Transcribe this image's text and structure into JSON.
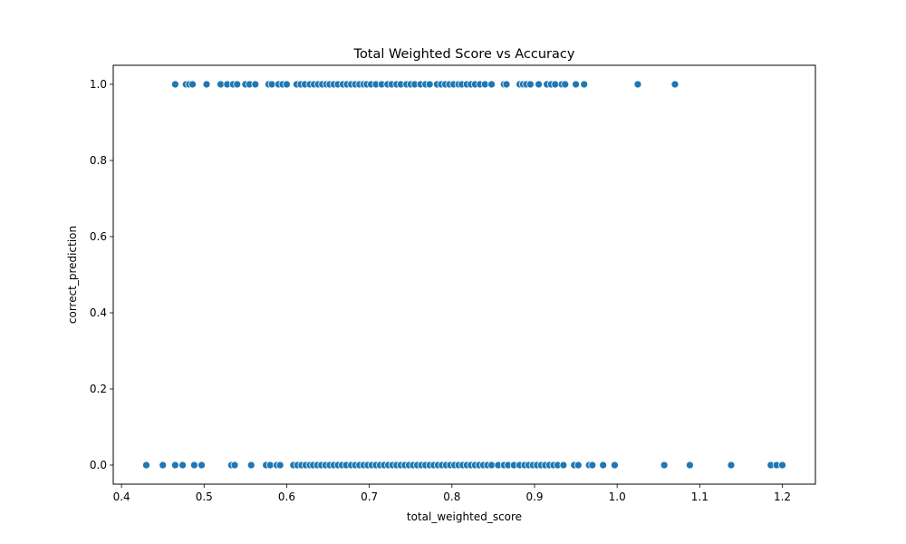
{
  "chart_data": {
    "type": "scatter",
    "title": "Total Weighted Score vs Accuracy",
    "xlabel": "total_weighted_score",
    "ylabel": "correct_prediction",
    "xlim": [
      0.39,
      1.24
    ],
    "ylim": [
      -0.05,
      1.05
    ],
    "xticks": [
      0.4,
      0.5,
      0.6,
      0.7,
      0.8,
      0.9,
      1.0,
      1.1,
      1.2
    ],
    "xtick_labels": [
      "0.4",
      "0.5",
      "0.6",
      "0.7",
      "0.8",
      "0.9",
      "1.0",
      "1.1",
      "1.2"
    ],
    "yticks": [
      0.0,
      0.2,
      0.4,
      0.6,
      0.8,
      1.0
    ],
    "ytick_labels": [
      "0.0",
      "0.2",
      "0.4",
      "0.6",
      "0.8",
      "1.0"
    ],
    "grid": false,
    "legend": "none",
    "marker_color": "#1f77b4",
    "series": [
      {
        "name": "",
        "points": [
          [
            0.465,
            1
          ],
          [
            0.478,
            1
          ],
          [
            0.482,
            1
          ],
          [
            0.486,
            1
          ],
          [
            0.503,
            1
          ],
          [
            0.52,
            1
          ],
          [
            0.528,
            1
          ],
          [
            0.535,
            1
          ],
          [
            0.54,
            1
          ],
          [
            0.55,
            1
          ],
          [
            0.555,
            1
          ],
          [
            0.562,
            1
          ],
          [
            0.578,
            1
          ],
          [
            0.582,
            1
          ],
          [
            0.59,
            1
          ],
          [
            0.595,
            1
          ],
          [
            0.6,
            1
          ],
          [
            0.612,
            1
          ],
          [
            0.617,
            1
          ],
          [
            0.622,
            1
          ],
          [
            0.628,
            1
          ],
          [
            0.633,
            1
          ],
          [
            0.638,
            1
          ],
          [
            0.643,
            1
          ],
          [
            0.648,
            1
          ],
          [
            0.652,
            1
          ],
          [
            0.657,
            1
          ],
          [
            0.662,
            1
          ],
          [
            0.668,
            1
          ],
          [
            0.673,
            1
          ],
          [
            0.678,
            1
          ],
          [
            0.683,
            1
          ],
          [
            0.688,
            1
          ],
          [
            0.693,
            1
          ],
          [
            0.697,
            1
          ],
          [
            0.702,
            1
          ],
          [
            0.708,
            1
          ],
          [
            0.715,
            1
          ],
          [
            0.722,
            1
          ],
          [
            0.727,
            1
          ],
          [
            0.733,
            1
          ],
          [
            0.738,
            1
          ],
          [
            0.745,
            1
          ],
          [
            0.75,
            1
          ],
          [
            0.755,
            1
          ],
          [
            0.762,
            1
          ],
          [
            0.768,
            1
          ],
          [
            0.773,
            1
          ],
          [
            0.782,
            1
          ],
          [
            0.787,
            1
          ],
          [
            0.792,
            1
          ],
          [
            0.797,
            1
          ],
          [
            0.802,
            1
          ],
          [
            0.808,
            1
          ],
          [
            0.812,
            1
          ],
          [
            0.818,
            1
          ],
          [
            0.823,
            1
          ],
          [
            0.828,
            1
          ],
          [
            0.834,
            1
          ],
          [
            0.84,
            1
          ],
          [
            0.848,
            1
          ],
          [
            0.863,
            1
          ],
          [
            0.866,
            1
          ],
          [
            0.882,
            1
          ],
          [
            0.886,
            1
          ],
          [
            0.89,
            1
          ],
          [
            0.895,
            1
          ],
          [
            0.905,
            1
          ],
          [
            0.915,
            1
          ],
          [
            0.92,
            1
          ],
          [
            0.925,
            1
          ],
          [
            0.933,
            1
          ],
          [
            0.937,
            1
          ],
          [
            0.95,
            1
          ],
          [
            0.96,
            1
          ],
          [
            1.025,
            1
          ],
          [
            1.07,
            1
          ],
          [
            0.43,
            0
          ],
          [
            0.45,
            0
          ],
          [
            0.465,
            0
          ],
          [
            0.474,
            0
          ],
          [
            0.488,
            0
          ],
          [
            0.497,
            0
          ],
          [
            0.533,
            0
          ],
          [
            0.537,
            0
          ],
          [
            0.557,
            0
          ],
          [
            0.575,
            0
          ],
          [
            0.58,
            0
          ],
          [
            0.588,
            0
          ],
          [
            0.592,
            0
          ],
          [
            0.608,
            0
          ],
          [
            0.613,
            0
          ],
          [
            0.618,
            0
          ],
          [
            0.623,
            0
          ],
          [
            0.628,
            0
          ],
          [
            0.632,
            0
          ],
          [
            0.637,
            0
          ],
          [
            0.642,
            0
          ],
          [
            0.647,
            0
          ],
          [
            0.652,
            0
          ],
          [
            0.657,
            0
          ],
          [
            0.662,
            0
          ],
          [
            0.667,
            0
          ],
          [
            0.672,
            0
          ],
          [
            0.678,
            0
          ],
          [
            0.683,
            0
          ],
          [
            0.688,
            0
          ],
          [
            0.693,
            0
          ],
          [
            0.698,
            0
          ],
          [
            0.703,
            0
          ],
          [
            0.708,
            0
          ],
          [
            0.713,
            0
          ],
          [
            0.718,
            0
          ],
          [
            0.723,
            0
          ],
          [
            0.728,
            0
          ],
          [
            0.733,
            0
          ],
          [
            0.738,
            0
          ],
          [
            0.743,
            0
          ],
          [
            0.748,
            0
          ],
          [
            0.753,
            0
          ],
          [
            0.758,
            0
          ],
          [
            0.763,
            0
          ],
          [
            0.768,
            0
          ],
          [
            0.773,
            0
          ],
          [
            0.778,
            0
          ],
          [
            0.783,
            0
          ],
          [
            0.788,
            0
          ],
          [
            0.793,
            0
          ],
          [
            0.798,
            0
          ],
          [
            0.803,
            0
          ],
          [
            0.808,
            0
          ],
          [
            0.813,
            0
          ],
          [
            0.818,
            0
          ],
          [
            0.823,
            0
          ],
          [
            0.828,
            0
          ],
          [
            0.833,
            0
          ],
          [
            0.838,
            0
          ],
          [
            0.843,
            0
          ],
          [
            0.848,
            0
          ],
          [
            0.856,
            0
          ],
          [
            0.863,
            0
          ],
          [
            0.868,
            0
          ],
          [
            0.875,
            0
          ],
          [
            0.882,
            0
          ],
          [
            0.888,
            0
          ],
          [
            0.893,
            0
          ],
          [
            0.898,
            0
          ],
          [
            0.903,
            0
          ],
          [
            0.908,
            0
          ],
          [
            0.913,
            0
          ],
          [
            0.918,
            0
          ],
          [
            0.923,
            0
          ],
          [
            0.928,
            0
          ],
          [
            0.935,
            0
          ],
          [
            0.948,
            0
          ],
          [
            0.953,
            0
          ],
          [
            0.966,
            0
          ],
          [
            0.97,
            0
          ],
          [
            0.983,
            0
          ],
          [
            0.997,
            0
          ],
          [
            1.057,
            0
          ],
          [
            1.088,
            0
          ],
          [
            1.138,
            0
          ],
          [
            1.186,
            0
          ],
          [
            1.193,
            0
          ],
          [
            1.2,
            0
          ]
        ]
      }
    ]
  }
}
